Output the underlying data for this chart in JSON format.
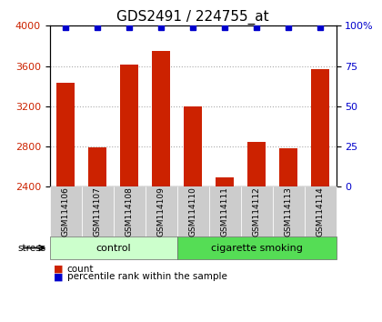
{
  "title": "GDS2491 / 224755_at",
  "samples": [
    "GSM114106",
    "GSM114107",
    "GSM114108",
    "GSM114109",
    "GSM114110",
    "GSM114111",
    "GSM114112",
    "GSM114113",
    "GSM114114"
  ],
  "counts": [
    3430,
    2790,
    3610,
    3750,
    3200,
    2490,
    2850,
    2780,
    3570
  ],
  "percentiles": [
    99,
    99,
    99,
    99,
    99,
    99,
    99,
    99,
    99
  ],
  "groups": [
    {
      "label": "control",
      "start": 0,
      "end": 4,
      "color": "#ccffcc"
    },
    {
      "label": "cigarette smoking",
      "start": 4,
      "end": 9,
      "color": "#55dd55"
    }
  ],
  "ylim_left": [
    2400,
    4000
  ],
  "ylim_right": [
    0,
    100
  ],
  "yticks_left": [
    2400,
    2800,
    3200,
    3600,
    4000
  ],
  "yticks_right": [
    0,
    25,
    50,
    75,
    100
  ],
  "bar_color": "#cc2200",
  "dot_color": "#0000cc",
  "bar_width": 0.55,
  "grid_color": "#aaaaaa",
  "title_fontsize": 11,
  "tick_fontsize": 8,
  "label_fontsize": 8,
  "stress_label": "stress"
}
